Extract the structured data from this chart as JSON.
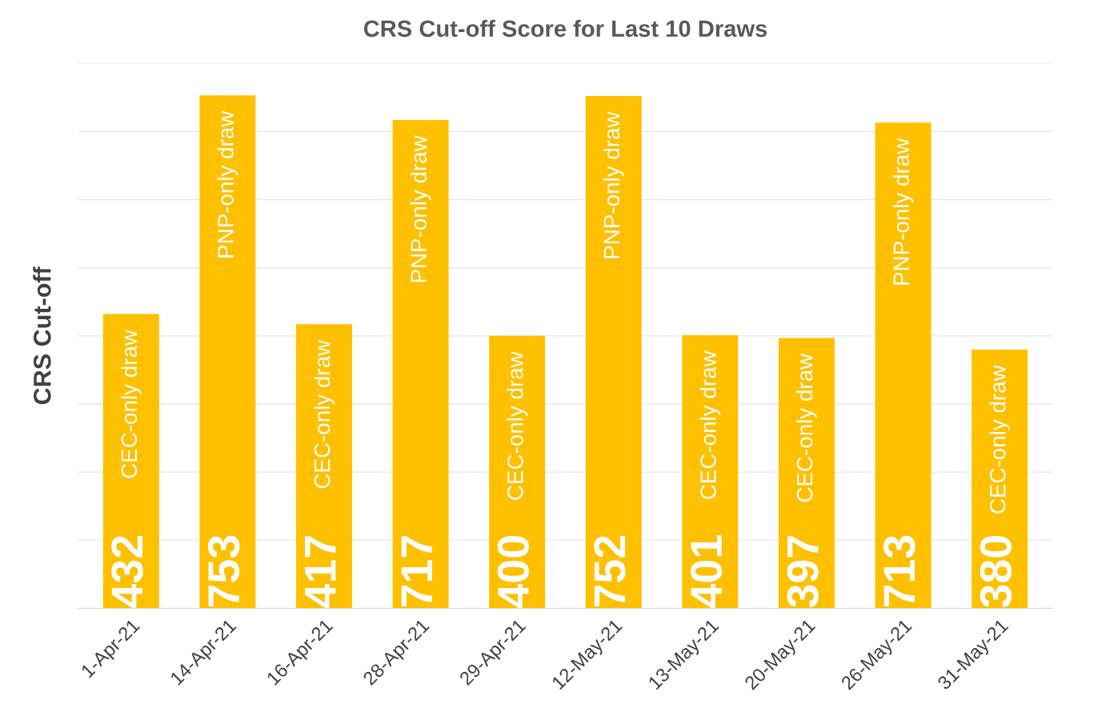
{
  "chart_data": {
    "type": "bar",
    "title": "CRS Cut-off Score for Last 10 Draws",
    "ylabel": "CRS Cut-off",
    "categories": [
      "1-Apr-21",
      "14-Apr-21",
      "16-Apr-21",
      "28-Apr-21",
      "29-Apr-21",
      "12-May-21",
      "13-May-21",
      "20-May-21",
      "26-May-21",
      "31-May-21"
    ],
    "values": [
      432,
      753,
      417,
      717,
      400,
      752,
      401,
      397,
      713,
      380
    ],
    "color": "#ffc000",
    "data_labels": true,
    "ylim": [
      0,
      800
    ],
    "yticks": [
      {
        "value": 0,
        "label": null
      },
      {
        "value": 100,
        "label": null
      },
      {
        "value": 200,
        "label": null
      },
      {
        "value": 300,
        "label": null
      },
      {
        "value": 400,
        "label": null
      },
      {
        "value": 500,
        "label": null
      },
      {
        "value": 600,
        "label": null
      },
      {
        "value": 700,
        "label": null
      },
      {
        "value": 800,
        "label": null
      }
    ],
    "tick_labels": "x",
    "grid": "y",
    "annotations": [
      "CEC-only draw",
      "PNP-only draw",
      "CEC-only draw",
      "PNP-only draw",
      "CEC-only draw",
      "PNP-only draw",
      "CEC-only draw",
      "CEC-only draw",
      "PNP-only draw",
      "CEC-only draw"
    ]
  }
}
